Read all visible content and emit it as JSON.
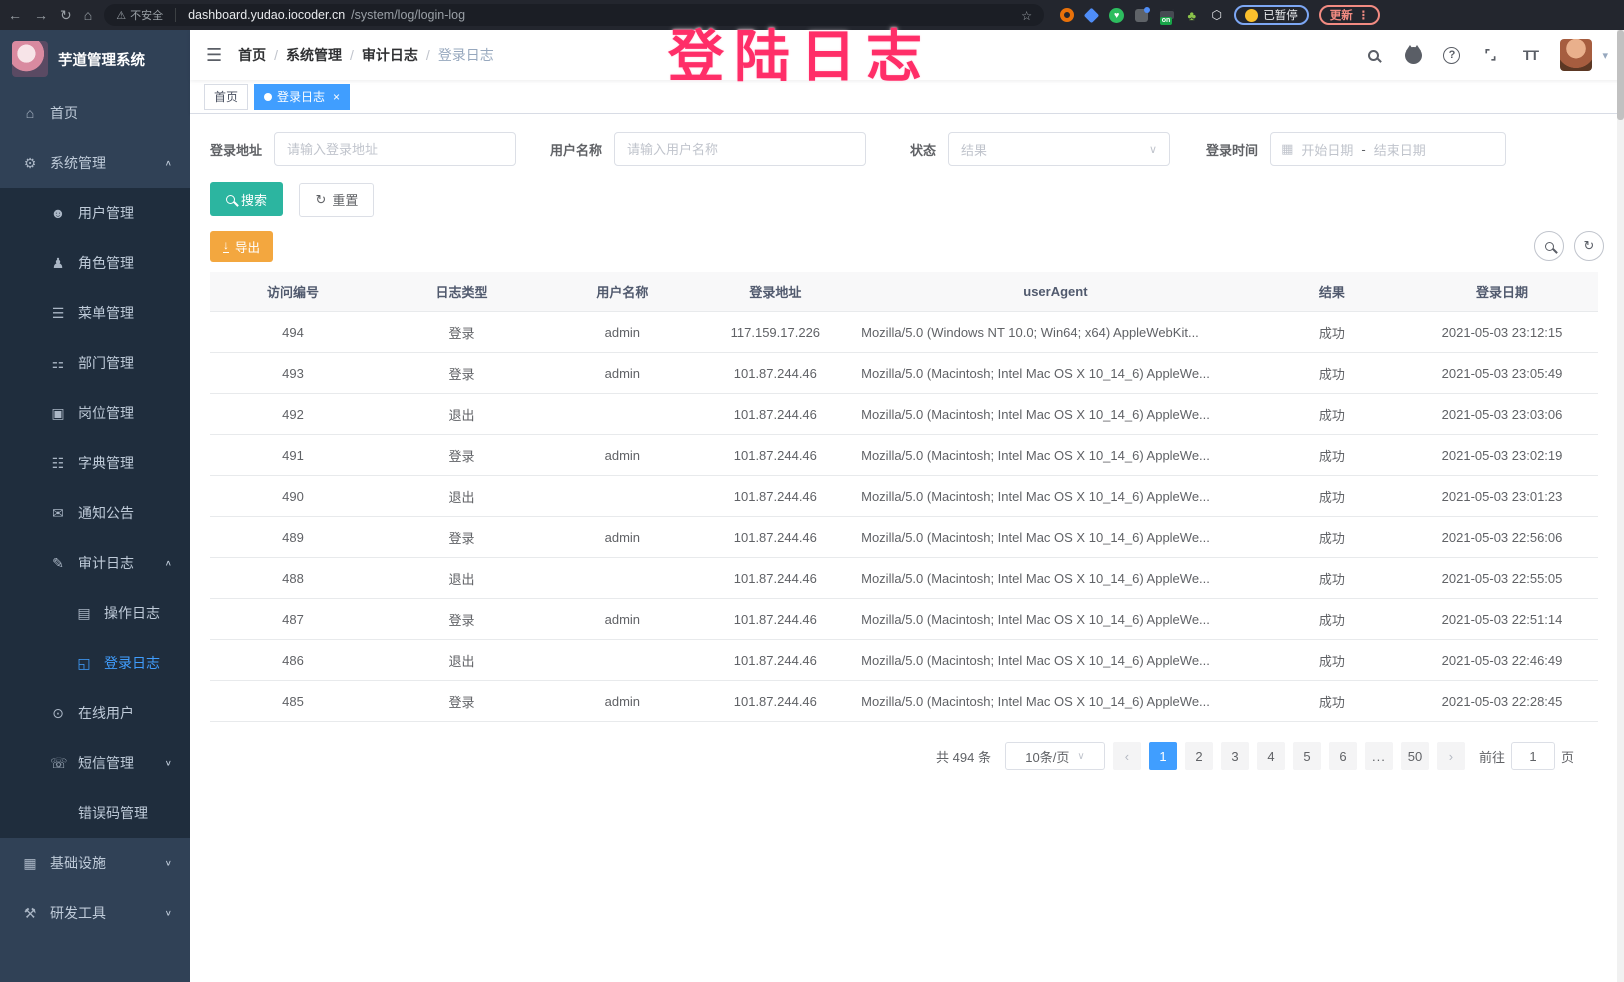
{
  "browser": {
    "security_label": "不安全",
    "url_host": "dashboard.yudao.iocoder.cn",
    "url_path": "/system/log/login-log",
    "extension_badge": "on",
    "paused_label": "已暂停",
    "update_label": "更新"
  },
  "overlay": {
    "text": "登陆日志"
  },
  "icons": {
    "back": "←",
    "forward": "→",
    "reload": "↻",
    "home": "⌂",
    "warning": "⚠",
    "star": "☆",
    "leaf": "♣",
    "puzzle": "⬡",
    "dots": "⋮",
    "hamburger": "☰",
    "close": "×",
    "caret-down": "∨",
    "chevron-up": "∧",
    "chevron-down": "∨",
    "calendar": "▦",
    "question": "?",
    "avatar-caret": "▾",
    "refresh": "↻",
    "download": "↓",
    "fullscreen": "⌜⌟",
    "fontsize": "TT",
    "prev": "‹",
    "next": "›",
    "home-icon": "⌂",
    "gear-icon": "⚙",
    "user-icon": "☻",
    "roles-icon": "♟",
    "menu-icon": "☰",
    "dept-icon": "⚏",
    "post-icon": "▣",
    "dict-icon": "☷",
    "notice-icon": "✉",
    "audit-icon": "✎",
    "operate-log-icon": "▤",
    "login-log-icon": "◱",
    "online-icon": "⊙",
    "sms-icon": "☏",
    "errcode-icon": "</>",
    "infra-icon": "▦",
    "devtools-icon": "⚒"
  },
  "sidebar": {
    "title": "芋道管理系统",
    "items": [
      {
        "id": "home",
        "label": "首页",
        "icon": "home-icon",
        "level": 1
      },
      {
        "id": "system-mgmt",
        "label": "系统管理",
        "icon": "gear-icon",
        "level": 1,
        "arrow": "up"
      },
      {
        "id": "user-mgmt",
        "label": "用户管理",
        "icon": "user-icon",
        "level": 2
      },
      {
        "id": "role-mgmt",
        "label": "角色管理",
        "icon": "roles-icon",
        "level": 2
      },
      {
        "id": "menu-mgmt",
        "label": "菜单管理",
        "icon": "menu-icon",
        "level": 2
      },
      {
        "id": "dept-mgmt",
        "label": "部门管理",
        "icon": "dept-icon",
        "level": 2
      },
      {
        "id": "post-mgmt",
        "label": "岗位管理",
        "icon": "post-icon",
        "level": 2
      },
      {
        "id": "dict-mgmt",
        "label": "字典管理",
        "icon": "dict-icon",
        "level": 2
      },
      {
        "id": "notice",
        "label": "通知公告",
        "icon": "notice-icon",
        "level": 2
      },
      {
        "id": "audit-log",
        "label": "审计日志",
        "icon": "audit-icon",
        "level": 2,
        "arrow": "up"
      },
      {
        "id": "operate-log",
        "label": "操作日志",
        "icon": "operate-log-icon",
        "level": 3
      },
      {
        "id": "login-log",
        "label": "登录日志",
        "icon": "login-log-icon",
        "level": 3,
        "active": true
      },
      {
        "id": "online-user",
        "label": "在线用户",
        "icon": "online-icon",
        "level": 2
      },
      {
        "id": "sms-mgmt",
        "label": "短信管理",
        "icon": "sms-icon",
        "level": 2,
        "arrow": "down"
      },
      {
        "id": "errcode-mgmt",
        "label": "错误码管理",
        "icon": "errcode-icon",
        "level": 2
      },
      {
        "id": "infra",
        "label": "基础设施",
        "icon": "infra-icon",
        "level": 1,
        "arrow": "down"
      },
      {
        "id": "dev-tools",
        "label": "研发工具",
        "icon": "devtools-icon",
        "level": 1,
        "arrow": "down"
      }
    ]
  },
  "navbar": {
    "breadcrumb": [
      "首页",
      "系统管理",
      "审计日志",
      "登录日志"
    ]
  },
  "tags": [
    {
      "label": "首页",
      "active": false
    },
    {
      "label": "登录日志",
      "active": true
    }
  ],
  "filters": {
    "address_label": "登录地址",
    "address_placeholder": "请输入登录地址",
    "username_label": "用户名称",
    "username_placeholder": "请输入用户名称",
    "status_label": "状态",
    "status_placeholder": "结果",
    "time_label": "登录时间",
    "start_placeholder": "开始日期",
    "range_separator": "-",
    "end_placeholder": "结束日期",
    "search_label": "搜索",
    "reset_label": "重置",
    "export_label": "导出"
  },
  "table": {
    "columns": [
      "访问编号",
      "日志类型",
      "用户名称",
      "登录地址",
      "userAgent",
      "结果",
      "登录日期"
    ],
    "rows": [
      [
        "494",
        "登录",
        "admin",
        "117.159.17.226",
        "Mozilla/5.0 (Windows NT 10.0; Win64; x64) AppleWebKit...",
        "成功",
        "2021-05-03 23:12:15"
      ],
      [
        "493",
        "登录",
        "admin",
        "101.87.244.46",
        "Mozilla/5.0 (Macintosh; Intel Mac OS X 10_14_6) AppleWe...",
        "成功",
        "2021-05-03 23:05:49"
      ],
      [
        "492",
        "退出",
        "",
        "101.87.244.46",
        "Mozilla/5.0 (Macintosh; Intel Mac OS X 10_14_6) AppleWe...",
        "成功",
        "2021-05-03 23:03:06"
      ],
      [
        "491",
        "登录",
        "admin",
        "101.87.244.46",
        "Mozilla/5.0 (Macintosh; Intel Mac OS X 10_14_6) AppleWe...",
        "成功",
        "2021-05-03 23:02:19"
      ],
      [
        "490",
        "退出",
        "",
        "101.87.244.46",
        "Mozilla/5.0 (Macintosh; Intel Mac OS X 10_14_6) AppleWe...",
        "成功",
        "2021-05-03 23:01:23"
      ],
      [
        "489",
        "登录",
        "admin",
        "101.87.244.46",
        "Mozilla/5.0 (Macintosh; Intel Mac OS X 10_14_6) AppleWe...",
        "成功",
        "2021-05-03 22:56:06"
      ],
      [
        "488",
        "退出",
        "",
        "101.87.244.46",
        "Mozilla/5.0 (Macintosh; Intel Mac OS X 10_14_6) AppleWe...",
        "成功",
        "2021-05-03 22:55:05"
      ],
      [
        "487",
        "登录",
        "admin",
        "101.87.244.46",
        "Mozilla/5.0 (Macintosh; Intel Mac OS X 10_14_6) AppleWe...",
        "成功",
        "2021-05-03 22:51:14"
      ],
      [
        "486",
        "退出",
        "",
        "101.87.244.46",
        "Mozilla/5.0 (Macintosh; Intel Mac OS X 10_14_6) AppleWe...",
        "成功",
        "2021-05-03 22:46:49"
      ],
      [
        "485",
        "登录",
        "admin",
        "101.87.244.46",
        "Mozilla/5.0 (Macintosh; Intel Mac OS X 10_14_6) AppleWe...",
        "成功",
        "2021-05-03 22:28:45"
      ]
    ]
  },
  "pagination": {
    "total": "共 494 条",
    "page_size": "10条/页",
    "pages": [
      "1",
      "2",
      "3",
      "4",
      "5",
      "6",
      "...",
      "50"
    ],
    "active_page": "1",
    "goto_label": "前往",
    "goto_value": "1",
    "page_unit": "页"
  },
  "colors": {
    "accent": "#409eff",
    "sidebar_bg": "#304156",
    "submenu_bg": "#1f2d3d",
    "search_button": "#2cb5a0",
    "export_button": "#f3a73f",
    "annotation": "#ff2e68"
  }
}
